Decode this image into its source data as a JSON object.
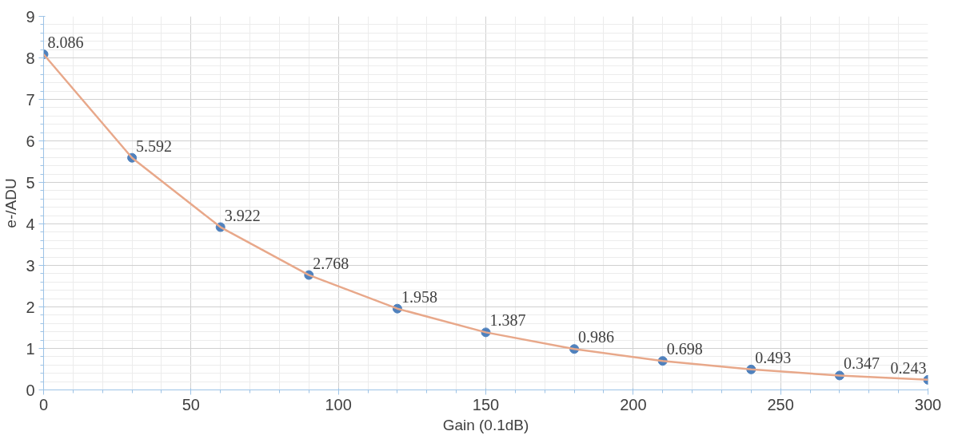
{
  "chart_data": {
    "type": "scatter",
    "xlabel": "Gain (0.1dB)",
    "ylabel": "e-/ADU",
    "x": [
      0,
      30,
      60,
      90,
      120,
      150,
      180,
      210,
      240,
      270,
      300
    ],
    "series": [
      {
        "color": "#4f81bd",
        "values": [
          8.086,
          5.592,
          3.922,
          2.768,
          1.958,
          1.387,
          0.986,
          0.698,
          0.493,
          0.347,
          0.243
        ],
        "value_labels": [
          "8.086",
          "5.592",
          "3.922",
          "2.768",
          "1.958",
          "1.387",
          "0.986",
          "0.698",
          "0.493",
          "0.347",
          "0.243"
        ]
      },
      {
        "type": "line",
        "color": "#e8a88a",
        "x": [
          0,
          30,
          60,
          90,
          120,
          150,
          180,
          210,
          240,
          270,
          300
        ],
        "values": [
          8.086,
          5.592,
          3.922,
          2.768,
          1.958,
          1.387,
          0.986,
          0.698,
          0.493,
          0.347,
          0.243
        ]
      }
    ],
    "grid": true,
    "xlim": [
      0,
      300
    ],
    "ylim": [
      0,
      9
    ],
    "xticks": [
      0,
      50,
      100,
      150,
      200,
      250,
      300
    ],
    "yticks": [
      0,
      1,
      2,
      3,
      4,
      5,
      6,
      7,
      8,
      9
    ]
  }
}
